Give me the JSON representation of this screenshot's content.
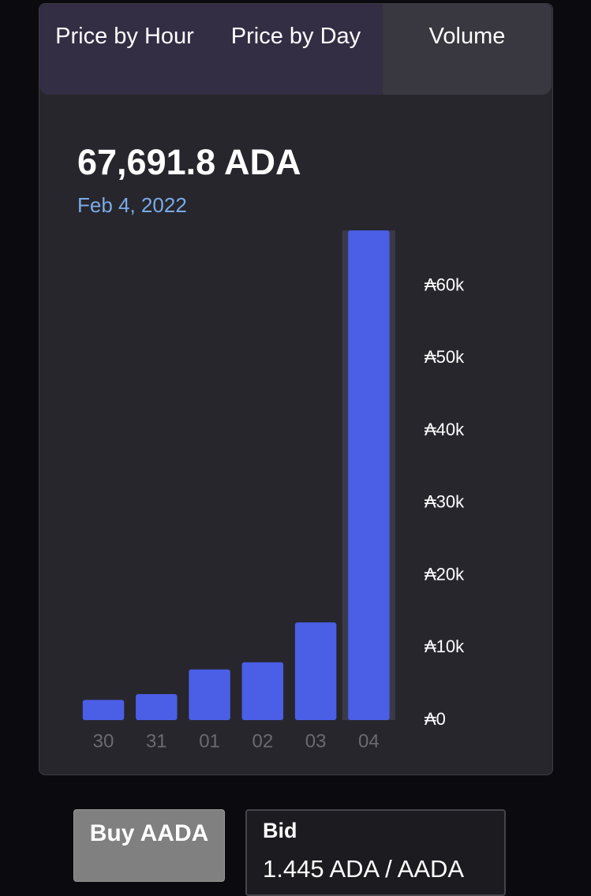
{
  "tabs": [
    "Price by Hour",
    "Price by Day",
    "Volume"
  ],
  "summary": {
    "amount": "67,691.8 ADA",
    "date": "Feb 4, 2022"
  },
  "chart_data": {
    "type": "bar",
    "categories": [
      "30",
      "31",
      "01",
      "02",
      "03",
      "04"
    ],
    "values": [
      2800,
      3600,
      7000,
      8000,
      13500,
      67691.8
    ],
    "color": "#4b5ee6",
    "ylim": [
      0,
      70000
    ],
    "yticks": [
      {
        "value": 0,
        "label": "₳0"
      },
      {
        "value": 10000,
        "label": "₳10k"
      },
      {
        "value": 20000,
        "label": "₳20k"
      },
      {
        "value": 30000,
        "label": "₳30k"
      },
      {
        "value": 40000,
        "label": "₳40k"
      },
      {
        "value": 50000,
        "label": "₳50k"
      },
      {
        "value": 60000,
        "label": "₳60k"
      }
    ],
    "grid": false
  },
  "buy_button": "Buy AADA",
  "bid": {
    "label": "Bid",
    "value": "1.445 ADA / AADA"
  }
}
